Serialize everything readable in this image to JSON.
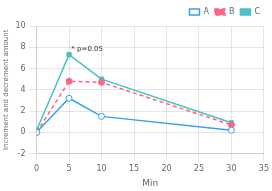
{
  "chart_data": {
    "type": "line",
    "xlabel": "Min",
    "ylabel": "Increment and decrement amount",
    "x": [
      0,
      5,
      10,
      30
    ],
    "series": [
      {
        "name": "A",
        "values": [
          0.0,
          3.2,
          1.5,
          0.2
        ],
        "marker": "open_circle",
        "line_style": "solid"
      },
      {
        "name": "B",
        "values": [
          0.0,
          4.8,
          4.7,
          0.7
        ],
        "marker": "circle",
        "line_style": "dashed"
      },
      {
        "name": "C",
        "values": [
          0.2,
          7.3,
          5.0,
          0.9
        ],
        "marker": "square",
        "line_style": "solid"
      }
    ],
    "xlim": [
      0,
      35
    ],
    "ylim": [
      -2.0,
      10.0
    ],
    "xticks": [
      0,
      5,
      10,
      15,
      20,
      25,
      30,
      35
    ],
    "yticks": [
      -2.0,
      0.0,
      2.0,
      4.0,
      6.0,
      8.0,
      10.0
    ],
    "annotations": [
      {
        "text": "* p=0.05",
        "x": 5.2,
        "y": 7.45
      }
    ],
    "grid": true,
    "legend": "upper right"
  }
}
